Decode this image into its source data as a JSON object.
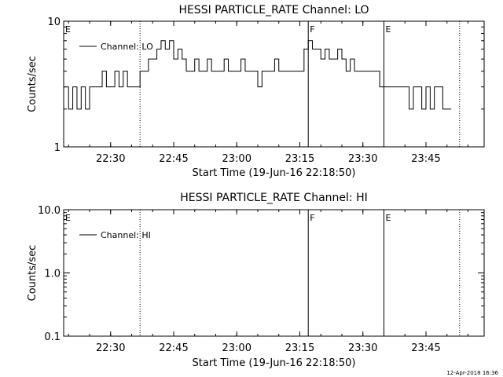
{
  "chart_data": [
    {
      "type": "line",
      "title": "HESSI PARTICLE_RATE Channel: LO",
      "xlabel": "Start Time (19-Jun-16 22:18:50)",
      "ylabel": "Counts/sec",
      "yscale": "log",
      "ylim": [
        1,
        10
      ],
      "ytick_labels": [
        "1",
        "10"
      ],
      "xlim": [
        "22:18:50",
        "23:58:50"
      ],
      "xtick_labels": [
        "22:30",
        "22:45",
        "23:00",
        "23:15",
        "23:30",
        "23:45"
      ],
      "grid": false,
      "legend": {
        "position": "top-left",
        "entries": [
          "Channel: LO"
        ]
      },
      "series": [
        {
          "name": "Channel: LO",
          "x": [
            "22:18:50",
            "22:20:00",
            "22:21:00",
            "22:22:00",
            "22:23:00",
            "22:24:00",
            "22:25:00",
            "22:26:00",
            "22:27:00",
            "22:28:00",
            "22:29:00",
            "22:30:00",
            "22:31:00",
            "22:32:00",
            "22:33:00",
            "22:34:00",
            "22:35:00",
            "22:36:00",
            "22:37:00",
            "22:38:00",
            "22:39:00",
            "22:40:00",
            "22:41:00",
            "22:42:00",
            "22:43:00",
            "22:44:00",
            "22:45:00",
            "22:46:00",
            "22:47:00",
            "22:48:00",
            "22:49:00",
            "22:50:00",
            "22:51:00",
            "22:52:00",
            "22:53:00",
            "22:54:00",
            "22:55:00",
            "22:56:00",
            "22:57:00",
            "22:58:00",
            "22:59:00",
            "23:00:00",
            "23:01:00",
            "23:02:00",
            "23:03:00",
            "23:04:00",
            "23:05:00",
            "23:06:00",
            "23:07:00",
            "23:08:00",
            "23:09:00",
            "23:10:00",
            "23:11:00",
            "23:12:00",
            "23:13:00",
            "23:14:00",
            "23:15:00",
            "23:16:00",
            "23:17:00",
            "23:18:00",
            "23:19:00",
            "23:20:00",
            "23:21:00",
            "23:22:00",
            "23:23:00",
            "23:24:00",
            "23:25:00",
            "23:26:00",
            "23:27:00",
            "23:28:00",
            "23:29:00",
            "23:30:00",
            "23:31:00",
            "23:32:00",
            "23:33:00",
            "23:34:00",
            "23:35:00",
            "23:36:00",
            "23:37:00",
            "23:38:00",
            "23:39:00",
            "23:40:00",
            "23:41:00",
            "23:42:00",
            "23:43:00",
            "23:44:00",
            "23:45:00",
            "23:46:00",
            "23:47:00",
            "23:48:00",
            "23:49:00",
            "23:50:00"
          ],
          "y": [
            3,
            2,
            3,
            2,
            3,
            2,
            3,
            3,
            3,
            4,
            3,
            3,
            4,
            3,
            4,
            3,
            3,
            3,
            4,
            4,
            5,
            5,
            6,
            7,
            6,
            7,
            5,
            6,
            5,
            4,
            4,
            5,
            4,
            4,
            5,
            4,
            4,
            4,
            5,
            4,
            4,
            4,
            5,
            4,
            4,
            4,
            3,
            4,
            4,
            4,
            5,
            4,
            4,
            4,
            4,
            4,
            4,
            6,
            7,
            6,
            6,
            5,
            6,
            5,
            5,
            6,
            5,
            4,
            5,
            4,
            4,
            4,
            4,
            4,
            4,
            3,
            3,
            3,
            3,
            3,
            3,
            3,
            2,
            3,
            3,
            2,
            3,
            2,
            3,
            3,
            2,
            2
          ]
        }
      ],
      "markers": [
        {
          "label": "E",
          "time": "22:18:50",
          "style": "dotted"
        },
        {
          "label": "",
          "time": "22:37:00",
          "style": "dotted"
        },
        {
          "label": "F",
          "time": "23:17:00",
          "style": "solid"
        },
        {
          "label": "E",
          "time": "23:35:00",
          "style": "solid"
        },
        {
          "label": "",
          "time": "23:53:00",
          "style": "dotted"
        }
      ]
    },
    {
      "type": "line",
      "title": "HESSI PARTICLE_RATE Channel: HI",
      "xlabel": "Start Time (19-Jun-16 22:18:50)",
      "ylabel": "Counts/sec",
      "yscale": "log",
      "ylim": [
        0.1,
        10
      ],
      "ytick_labels": [
        "0.1",
        "1.0",
        "10.0"
      ],
      "xlim": [
        "22:18:50",
        "23:58:50"
      ],
      "xtick_labels": [
        "22:30",
        "22:45",
        "23:00",
        "23:15",
        "23:30",
        "23:45"
      ],
      "grid": false,
      "legend": {
        "position": "top-left",
        "entries": [
          "Channel: HI"
        ]
      },
      "series": [
        {
          "name": "Channel: HI",
          "x": [],
          "y": []
        }
      ],
      "markers": [
        {
          "label": "E",
          "time": "22:18:50",
          "style": "dotted"
        },
        {
          "label": "",
          "time": "22:37:00",
          "style": "dotted"
        },
        {
          "label": "F",
          "time": "23:17:00",
          "style": "solid"
        },
        {
          "label": "E",
          "time": "23:35:00",
          "style": "solid"
        },
        {
          "label": "",
          "time": "23:53:00",
          "style": "dotted"
        }
      ]
    }
  ],
  "footer": {
    "timestamp": "12-Apr-2018 16:36"
  }
}
